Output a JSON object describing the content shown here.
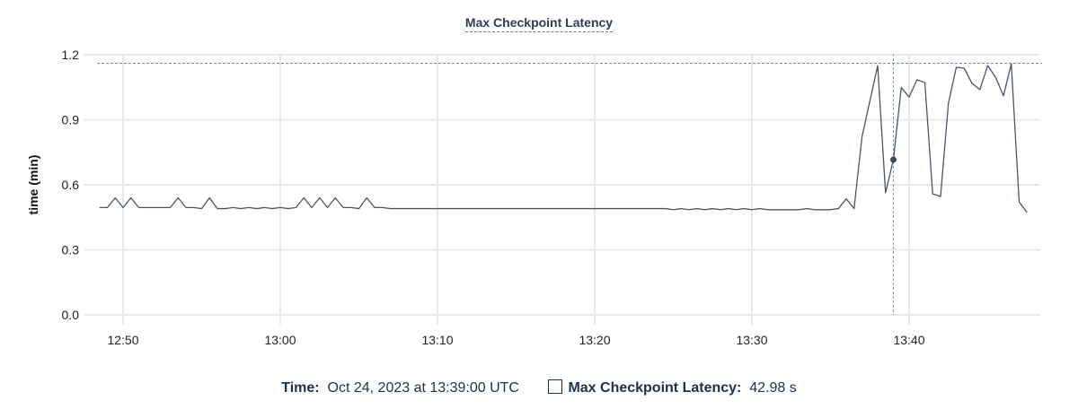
{
  "chart_data": {
    "type": "line",
    "title": "Max Checkpoint Latency",
    "xlabel": "",
    "ylabel": "time (min)",
    "ylim": [
      0,
      1.2
    ],
    "xlim": [
      "12:48:00",
      "13:48:30"
    ],
    "yticks": [
      "0.0",
      "0.3",
      "0.6",
      "0.9",
      "1.2"
    ],
    "xticks": [
      "12:50",
      "13:00",
      "13:10",
      "13:20",
      "13:30",
      "13:40"
    ],
    "grid": true,
    "line_color": "#4a5568",
    "max_reference_line": 1.16,
    "crosshair": {
      "x": "13:39:00",
      "y": 0.716
    },
    "series": [
      {
        "x": [
          "12:48:30",
          "12:49:00",
          "12:49:30",
          "12:50:00",
          "12:50:30",
          "12:51:00",
          "12:51:30",
          "12:52:00",
          "12:52:30",
          "12:53:00",
          "12:53:30",
          "12:54:00",
          "12:54:30",
          "12:55:00",
          "12:55:30",
          "12:56:00",
          "12:56:30",
          "12:57:00",
          "12:57:30",
          "12:58:00",
          "12:58:30",
          "12:59:00",
          "12:59:30",
          "13:00:00",
          "13:00:30",
          "13:01:00",
          "13:01:30",
          "13:02:00",
          "13:02:30",
          "13:03:00",
          "13:03:30",
          "13:04:00",
          "13:04:30",
          "13:05:00",
          "13:05:30",
          "13:06:00",
          "13:06:30",
          "13:07:00",
          "13:07:30",
          "13:08:00",
          "13:08:30",
          "13:09:00",
          "13:09:30",
          "13:10:00",
          "13:10:30",
          "13:11:00",
          "13:11:30",
          "13:12:00",
          "13:12:30",
          "13:13:00",
          "13:13:30",
          "13:14:00",
          "13:14:30",
          "13:15:00",
          "13:15:30",
          "13:16:00",
          "13:16:30",
          "13:17:00",
          "13:17:30",
          "13:18:00",
          "13:18:30",
          "13:19:00",
          "13:19:30",
          "13:20:00",
          "13:20:30",
          "13:21:00",
          "13:21:30",
          "13:22:00",
          "13:22:30",
          "13:23:00",
          "13:23:30",
          "13:24:00",
          "13:24:30",
          "13:25:00",
          "13:25:30",
          "13:26:00",
          "13:26:30",
          "13:27:00",
          "13:27:30",
          "13:28:00",
          "13:28:30",
          "13:29:00",
          "13:29:30",
          "13:30:00",
          "13:30:30",
          "13:31:00",
          "13:31:30",
          "13:32:00",
          "13:32:30",
          "13:33:00",
          "13:33:30",
          "13:34:00",
          "13:34:30",
          "13:35:00",
          "13:35:30",
          "13:36:00",
          "13:36:30",
          "13:37:00",
          "13:37:30",
          "13:38:00",
          "13:38:30",
          "13:39:00",
          "13:39:30",
          "13:40:00",
          "13:40:30",
          "13:41:00",
          "13:41:30",
          "13:42:00",
          "13:42:30",
          "13:43:00",
          "13:43:30",
          "13:44:00",
          "13:44:30",
          "13:45:00",
          "13:45:30",
          "13:46:00",
          "13:46:30",
          "13:47:00",
          "13:47:30"
        ],
        "values": [
          0.495,
          0.495,
          0.54,
          0.495,
          0.54,
          0.495,
          0.495,
          0.495,
          0.495,
          0.495,
          0.54,
          0.495,
          0.495,
          0.49,
          0.54,
          0.49,
          0.49,
          0.495,
          0.49,
          0.495,
          0.49,
          0.495,
          0.49,
          0.495,
          0.49,
          0.495,
          0.54,
          0.495,
          0.54,
          0.495,
          0.54,
          0.495,
          0.495,
          0.49,
          0.54,
          0.495,
          0.495,
          0.49,
          0.49,
          0.49,
          0.49,
          0.49,
          0.49,
          0.49,
          0.49,
          0.49,
          0.49,
          0.49,
          0.49,
          0.49,
          0.49,
          0.49,
          0.49,
          0.49,
          0.49,
          0.49,
          0.49,
          0.49,
          0.49,
          0.49,
          0.49,
          0.49,
          0.49,
          0.49,
          0.49,
          0.49,
          0.49,
          0.49,
          0.49,
          0.49,
          0.49,
          0.49,
          0.49,
          0.485,
          0.49,
          0.485,
          0.49,
          0.485,
          0.49,
          0.485,
          0.49,
          0.485,
          0.49,
          0.485,
          0.49,
          0.485,
          0.485,
          0.485,
          0.485,
          0.485,
          0.49,
          0.485,
          0.485,
          0.485,
          0.49,
          0.535,
          0.49,
          0.82,
          0.985,
          1.15,
          0.563,
          0.716,
          1.048,
          1.005,
          1.084,
          1.072,
          0.558,
          0.546,
          0.976,
          1.142,
          1.138,
          1.068,
          1.039,
          1.15,
          1.096,
          1.01,
          1.159,
          0.521,
          0.472
        ]
      }
    ]
  },
  "footer": {
    "time_label": "Time:",
    "time_value": "Oct 24, 2023 at 13:39:00 UTC",
    "series_label": "Max Checkpoint Latency:",
    "series_value": "42.98 s"
  }
}
